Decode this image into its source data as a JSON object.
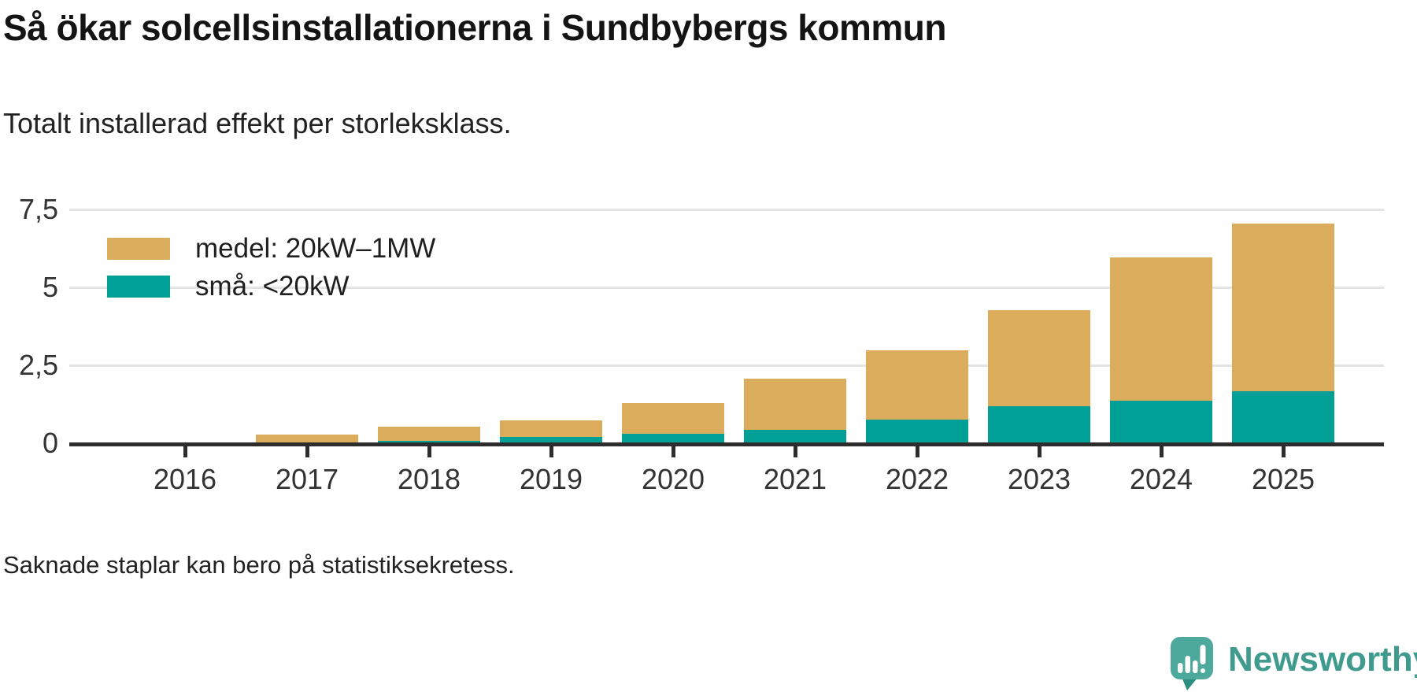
{
  "header": {
    "title": "Så ökar solcellsinstallationerna i Sundbybergs kommun",
    "subtitle": "Totalt installerad effekt per storleksklass."
  },
  "chart_data": {
    "type": "bar",
    "stacked": true,
    "categories": [
      "2016",
      "2017",
      "2018",
      "2019",
      "2020",
      "2021",
      "2022",
      "2023",
      "2024",
      "2025"
    ],
    "series": [
      {
        "name": "medel: 20kW–1MW",
        "color": "#dbac5c",
        "values": [
          0,
          0.27,
          0.45,
          0.54,
          0.98,
          1.64,
          2.22,
          3.09,
          4.59,
          5.39
        ]
      },
      {
        "name": "små: <20kW",
        "color": "#00a096",
        "values": [
          0,
          0,
          0.08,
          0.19,
          0.3,
          0.42,
          0.76,
          1.19,
          1.36,
          1.66
        ]
      }
    ],
    "stacked_totals": [
      0,
      0.27,
      0.53,
      0.73,
      1.28,
      2.06,
      2.98,
      4.28,
      5.95,
      7.05
    ],
    "ylim": [
      0,
      7.5
    ],
    "yticks": [
      {
        "value": 0,
        "label": "0"
      },
      {
        "value": 2.5,
        "label": "2,5"
      },
      {
        "value": 5,
        "label": "5"
      },
      {
        "value": 7.5,
        "label": "7,5"
      }
    ],
    "grid": "horizontal",
    "legend_position": "top-left"
  },
  "footer": {
    "note": "Saknade staplar kan bero på statistiksekretess."
  },
  "branding": {
    "logo_text": "Newsworthy",
    "logo_icon": "newsworthy-bubble-barchart-icon",
    "logo_text_color": "#3f9b8d",
    "logo_bubble_color": "#4ca99b",
    "logo_tail_color": "#2b8e80"
  },
  "colors": {
    "background": "#ffffff",
    "gridline": "#e3e3e3",
    "axis": "#2d2d2d",
    "text": "#222222"
  }
}
